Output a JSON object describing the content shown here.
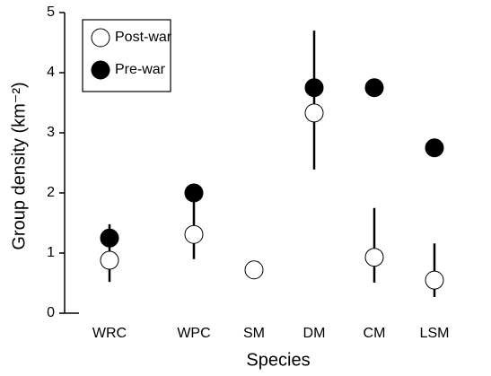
{
  "chart_data": {
    "type": "dot-errorbar",
    "x_label": "Species",
    "y_label": "Group density (km⁻²)",
    "categories": [
      "WRC",
      "WPC",
      "SM",
      "DM",
      "CM",
      "LSM"
    ],
    "series": [
      {
        "name": "Post-war",
        "color": "#ffffff",
        "values": [
          0.88,
          1.31,
          0.72,
          3.33,
          0.93,
          0.55
        ],
        "lower": [
          0.52,
          0.9,
          null,
          2.39,
          0.51,
          0.27
        ],
        "upper": [
          1.48,
          1.9,
          null,
          4.7,
          1.75,
          1.16
        ]
      },
      {
        "name": "Pre-war",
        "color": "#000000",
        "values": [
          1.25,
          2.0,
          null,
          3.75,
          3.75,
          2.75
        ]
      }
    ],
    "ylim": [
      0,
      5
    ],
    "yticks": [
      0,
      1,
      2,
      3,
      4,
      5
    ],
    "legend": "top-left"
  }
}
